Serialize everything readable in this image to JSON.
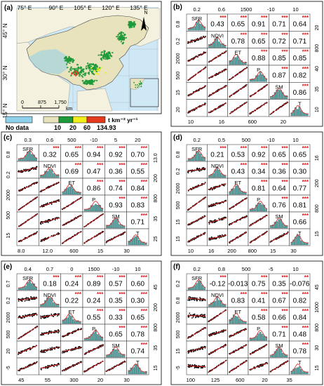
{
  "figure": {
    "map_panel": {
      "label": "(a)",
      "lon_ticks": [
        "75° E",
        "90° E",
        "105° E",
        "120° E",
        "135° E"
      ],
      "lat_ticks": [
        "45° N",
        "30° N",
        "15° N"
      ],
      "north": "N",
      "scale_ticks": [
        "0",
        "875",
        "1,750"
      ],
      "scale_unit": "km",
      "legend_unit": "t km⁻² yr⁻¹",
      "legend_items": [
        "No data",
        "10",
        "20",
        "60",
        "134.93"
      ],
      "colors": {
        "nodata": "#8fd0ea",
        "c1": "#e8e2bd",
        "c2": "#1f9a3a",
        "c3": "#f2ee1c",
        "c4": "#e43a1e",
        "sea": "#cfe8f5",
        "land": "#f4f1df"
      }
    },
    "matrix_panels": [
      {
        "label": "(b)",
        "vars": [
          "SFR",
          "NDVI",
          "ET",
          "P",
          "SM",
          "T"
        ],
        "r": [
          [
            "0.43",
            "0.65",
            "0.91",
            "0.71",
            "0.64"
          ],
          [
            "0.78",
            "0.65",
            "0.72",
            "0.71"
          ],
          [
            "0.88",
            "0.85",
            "0.85"
          ],
          [
            "0.87",
            "0.82"
          ],
          [
            "0.86"
          ]
        ],
        "stars": [
          [
            "***",
            "***",
            "***",
            "***",
            "***"
          ],
          [
            "***",
            "***",
            "***",
            "***"
          ],
          [
            "***",
            "***",
            "***"
          ],
          [
            "***",
            "***"
          ],
          [
            "***"
          ]
        ],
        "top_axis": [
          "0.2",
          "0.6",
          "1500",
          "-10",
          "10"
        ],
        "bottom_axis": [
          "10",
          "16",
          "600",
          "20"
        ],
        "right_axis": [
          "20",
          "800",
          "40",
          "35",
          "10"
        ],
        "left_axis": [
          "0.8",
          "0.2",
          "2000",
          "500",
          "15",
          "20"
        ]
      },
      {
        "label": "(c)",
        "vars": [
          "SFR",
          "NDVI",
          "ET",
          "P",
          "SM",
          "T"
        ],
        "r": [
          [
            "0.32",
            "0.65",
            "0.94",
            "0.92",
            "0.70"
          ],
          [
            "0.69",
            "0.47",
            "0.36",
            "0.55"
          ],
          [
            "0.86",
            "0.74",
            "0.84"
          ],
          [
            "0.93",
            "0.83"
          ],
          [
            "0.71"
          ]
        ],
        "stars": [
          [
            "***",
            "***",
            "***",
            "***",
            "***"
          ],
          [
            "***",
            "***",
            "***",
            "***"
          ],
          [
            "***",
            "***",
            "***"
          ],
          [
            "***",
            "***"
          ],
          [
            "***"
          ]
        ],
        "top_axis": [
          "0.3",
          "0.6",
          "500",
          "-10",
          "5",
          "20"
        ],
        "bottom_axis": [
          "8.0",
          "12.0",
          "600",
          "15",
          "30"
        ],
        "right_axis": [
          "13.0",
          "200",
          "800",
          "35",
          "25"
        ],
        "left_axis": [
          "0.8",
          "0.2",
          "2000",
          "500",
          "15"
        ]
      },
      {
        "label": "(d)",
        "vars": [
          "SFR",
          "NDVI",
          "ET",
          "P",
          "SM",
          "T"
        ],
        "r": [
          [
            "0.21",
            "0.53",
            "0.92",
            "0.65",
            "0.65"
          ],
          [
            "0.43",
            "0.34",
            "0.36",
            "0.30"
          ],
          [
            "0.81",
            "0.64",
            "0.77"
          ],
          [
            "0.76",
            "0.81"
          ],
          [
            "0.66"
          ]
        ],
        "stars": [
          [
            "***",
            "***",
            "***",
            "***",
            "***"
          ],
          [
            "***",
            "***",
            "***",
            "***"
          ],
          [
            "***",
            "***",
            "***"
          ],
          [
            "***",
            "***"
          ],
          [
            "***"
          ]
        ],
        "top_axis": [
          "0.2",
          "0.5",
          "500",
          "-10",
          "10"
        ],
        "bottom_axis": [
          "10",
          "16",
          "200",
          "800",
          "15",
          "30"
        ],
        "right_axis": [
          "16",
          "200",
          "800",
          "15"
        ],
        "left_axis": [
          "0.8",
          "0.2",
          "2000",
          "500",
          "15",
          "15"
        ]
      },
      {
        "label": "(e)",
        "vars": [
          "SFR",
          "NDVI",
          "ET",
          "P",
          "SM",
          "T"
        ],
        "r": [
          [
            "0.18",
            "0.24",
            "0.89",
            "0.57",
            "0.60"
          ],
          [
            "0.22",
            "0.24",
            "0.35",
            "0.30"
          ],
          [
            "0.55",
            "0.33",
            "0.65"
          ],
          [
            "0.65",
            "0.78"
          ],
          [
            "0.74"
          ]
        ],
        "stars": [
          [
            "***",
            "***",
            "***",
            "***",
            "***"
          ],
          [
            "***",
            "***",
            "***",
            "***"
          ],
          [
            "***",
            "***",
            "***"
          ],
          [
            "***",
            "***"
          ],
          [
            "***"
          ]
        ],
        "top_axis": [
          "0.4",
          "0.7",
          "0",
          "1500",
          "-10",
          "10"
        ],
        "bottom_axis": [
          "45",
          "55",
          "300",
          "20",
          "30"
        ],
        "right_axis": [
          "45",
          "200",
          "800",
          "35",
          "15"
        ],
        "left_axis": [
          "0.7",
          "0.2",
          "2000",
          "500",
          "20",
          "-5"
        ]
      },
      {
        "label": "(f)",
        "vars": [
          "SFR",
          "NDVI",
          "ET",
          "P",
          "SM",
          "T"
        ],
        "r": [
          [
            "-0.12",
            "-0.013",
            "0.75",
            "0.35",
            "-0.076"
          ],
          [
            "0.83",
            "0.41",
            "0.67",
            "0.82"
          ],
          [
            "0.58",
            "0.66",
            "0.84"
          ],
          [
            "0.71",
            "0.48"
          ],
          [
            "0.78"
          ]
        ],
        "stars": [
          [
            "***",
            "",
            "***",
            "***",
            "**"
          ],
          [
            "***",
            "***",
            "***",
            "***"
          ],
          [
            "***",
            "***",
            "***"
          ],
          [
            "***",
            "***"
          ],
          [
            "***"
          ]
        ],
        "top_axis": [
          "0.2",
          "0.8",
          "500",
          "-5",
          "10"
        ],
        "bottom_axis": [
          "100",
          "125",
          "600",
          "20",
          "35"
        ],
        "right_axis": [
          "45",
          "1000",
          "800",
          "30",
          "15"
        ],
        "left_axis": [
          "0.2",
          "0.8",
          "2000",
          "500",
          "15",
          "-5"
        ]
      }
    ]
  },
  "chart_data": {
    "type": "scatter",
    "description_labels": [
      "SFR",
      "NDVI",
      "ET",
      "P",
      "SM",
      "T"
    ],
    "panels": [
      "(b)",
      "(c)",
      "(d)",
      "(e)",
      "(f)"
    ]
  }
}
